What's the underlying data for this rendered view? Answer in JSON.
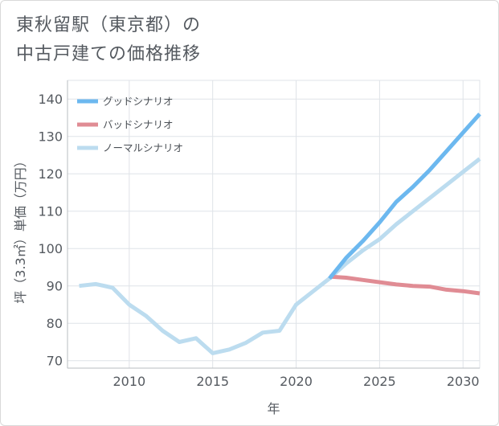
{
  "title_lines": [
    "東秋留駅（東京都）の",
    "中古戸建ての価格推移"
  ],
  "chart_data": {
    "type": "line",
    "title": "東秋留駅（東京都）の中古戸建ての価格推移",
    "xlabel": "年",
    "ylabel": "坪（3.3㎡）単価（万円）",
    "xlim": [
      2006.3,
      2031
    ],
    "ylim": [
      68,
      145
    ],
    "xticks": [
      2010,
      2015,
      2020,
      2025,
      2030
    ],
    "yticks": [
      70,
      80,
      90,
      100,
      110,
      120,
      130,
      140
    ],
    "grid": true,
    "legend_position": "top-left",
    "series": [
      {
        "name": "グッドシナリオ",
        "color": "#6cb8ef",
        "x": [
          2022,
          2023,
          2024,
          2025,
          2026,
          2027,
          2028,
          2029,
          2030,
          2031
        ],
        "values": [
          92,
          97.5,
          102,
          107,
          112.5,
          116.5,
          121,
          126,
          131,
          136
        ]
      },
      {
        "name": "バッドシナリオ",
        "color": "#e08c94",
        "x": [
          2022,
          2023,
          2024,
          2025,
          2026,
          2027,
          2028,
          2029,
          2030,
          2031
        ],
        "values": [
          92.5,
          92.2,
          91.6,
          91,
          90.4,
          90,
          89.8,
          89,
          88.6,
          88
        ]
      },
      {
        "name": "ノーマルシナリオ",
        "color": "#bcdcef",
        "x": [
          2007,
          2008,
          2009,
          2010,
          2011,
          2012,
          2013,
          2014,
          2015,
          2016,
          2017,
          2018,
          2019,
          2020,
          2021,
          2022,
          2023,
          2024,
          2025,
          2026,
          2027,
          2028,
          2029,
          2030,
          2031
        ],
        "values": [
          90,
          90.5,
          89.5,
          85,
          82,
          78,
          75,
          76,
          72,
          73,
          74.8,
          77.5,
          78,
          85,
          88.5,
          92,
          96,
          99.5,
          102.5,
          106.5,
          110,
          113.5,
          117,
          120.5,
          124
        ]
      }
    ]
  }
}
